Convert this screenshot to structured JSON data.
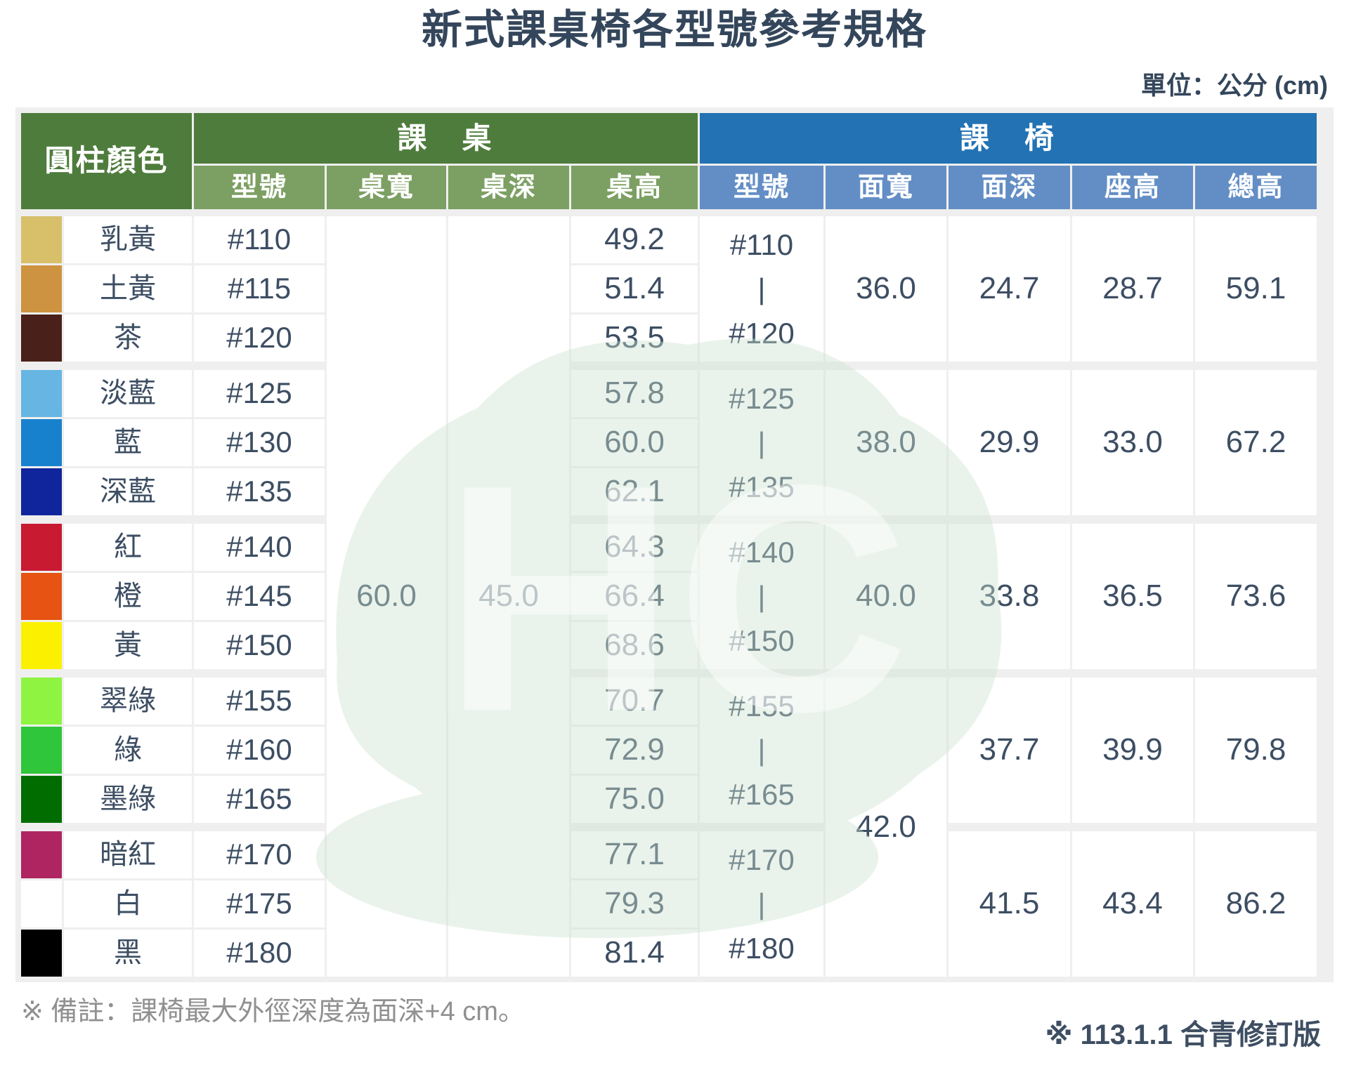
{
  "title": "新式課桌椅各型號參考規格",
  "unit_label": "單位：公分 (cm)",
  "note": "※ 備註：課椅最大外徑深度為面深+4 cm。",
  "revision": "※ 113.1.1 合青修訂版",
  "theme": {
    "header_green": "#4E7C3C",
    "subheader_green": "#7C9F63",
    "header_blue": "#2372B4",
    "subheader_blue": "#638EC5",
    "table_backing": "#EFEFEF",
    "body_text": "#3D4E63",
    "title_text": "#34465B",
    "note_text": "#909090",
    "watermark_green": "#CBE2D0"
  },
  "table": {
    "corner_header": "圓柱顏色",
    "desk_header": "課　桌",
    "chair_header": "課　椅",
    "desk_columns": [
      "型號",
      "桌寬",
      "桌深",
      "桌高"
    ],
    "chair_columns": [
      "型號",
      "面寬",
      "面深",
      "座高",
      "總高"
    ],
    "desk_width_all": "60.0",
    "desk_depth_all": "45.0",
    "rows": [
      {
        "color_name": "乳黃",
        "swatch": "#D8C06A",
        "model": "#110",
        "desk_height": "49.2"
      },
      {
        "color_name": "土黃",
        "swatch": "#CE9340",
        "model": "#115",
        "desk_height": "51.4"
      },
      {
        "color_name": "茶",
        "swatch": "#4A211A",
        "model": "#120",
        "desk_height": "53.5"
      },
      {
        "color_name": "淡藍",
        "swatch": "#66B5E3",
        "model": "#125",
        "desk_height": "57.8"
      },
      {
        "color_name": "藍",
        "swatch": "#1881CE",
        "model": "#130",
        "desk_height": "60.0"
      },
      {
        "color_name": "深藍",
        "swatch": "#10259C",
        "model": "#135",
        "desk_height": "62.1"
      },
      {
        "color_name": "紅",
        "swatch": "#C81A31",
        "model": "#140",
        "desk_height": "64.3"
      },
      {
        "color_name": "橙",
        "swatch": "#E65312",
        "model": "#145",
        "desk_height": "66.4"
      },
      {
        "color_name": "黃",
        "swatch": "#FBF000",
        "model": "#150",
        "desk_height": "68.6"
      },
      {
        "color_name": "翠綠",
        "swatch": "#8EF441",
        "model": "#155",
        "desk_height": "70.7"
      },
      {
        "color_name": "綠",
        "swatch": "#2FC63C",
        "model": "#160",
        "desk_height": "72.9"
      },
      {
        "color_name": "墨綠",
        "swatch": "#016D01",
        "model": "#165",
        "desk_height": "75.0"
      },
      {
        "color_name": "暗紅",
        "swatch": "#AE2562",
        "model": "#170",
        "desk_height": "77.1"
      },
      {
        "color_name": "白",
        "swatch": "#FFFFFF",
        "model": "#175",
        "desk_height": "79.3"
      },
      {
        "color_name": "黑",
        "swatch": "#000000",
        "model": "#180",
        "desk_height": "81.4"
      }
    ],
    "chair_groups": [
      {
        "model_range": [
          "#110",
          "|",
          "#120"
        ],
        "seat_width": "36.0",
        "seat_depth": "24.7",
        "seat_height": "28.7",
        "total_height": "59.1"
      },
      {
        "model_range": [
          "#125",
          "|",
          "#135"
        ],
        "seat_width": "38.0",
        "seat_depth": "29.9",
        "seat_height": "33.0",
        "total_height": "67.2"
      },
      {
        "model_range": [
          "#140",
          "|",
          "#150"
        ],
        "seat_width": "40.0",
        "seat_depth": "33.8",
        "seat_height": "36.5",
        "total_height": "73.6"
      },
      {
        "model_range": [
          "#155",
          "|",
          "#165"
        ],
        "seat_depth": "37.7",
        "seat_height": "39.9",
        "total_height": "79.8"
      },
      {
        "model_range": [
          "#170",
          "|",
          "#180"
        ],
        "seat_depth": "41.5",
        "seat_height": "43.4",
        "total_height": "86.2"
      }
    ],
    "shared_seat_width_last_two_groups": "42.0"
  }
}
